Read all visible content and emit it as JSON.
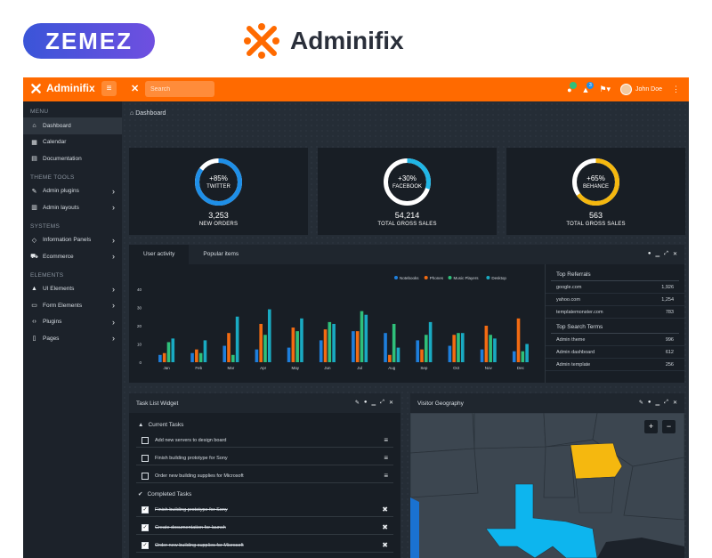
{
  "branding": {
    "zemez": "ZEMEZ",
    "product": "Adminifix",
    "accent": "#ff6a00"
  },
  "topbar": {
    "logo": "Adminifix",
    "search_placeholder": "Search",
    "user": "John Doe",
    "badges": [
      "",
      "3"
    ]
  },
  "sidebar": {
    "sections": [
      {
        "title": "MENU",
        "items": [
          {
            "label": "Dashboard",
            "icon": "home-icon",
            "active": true,
            "chevron": false
          },
          {
            "label": "Calendar",
            "icon": "calendar-icon",
            "chevron": false
          },
          {
            "label": "Documentation",
            "icon": "book-icon",
            "chevron": false
          }
        ]
      },
      {
        "title": "THEME TOOLS",
        "items": [
          {
            "label": "Admin plugins",
            "icon": "pen-icon",
            "chevron": true
          },
          {
            "label": "Admin layouts",
            "icon": "columns-icon",
            "chevron": true
          }
        ]
      },
      {
        "title": "SYSTEMS",
        "items": [
          {
            "label": "Information Panels",
            "icon": "diamond-icon",
            "chevron": true
          },
          {
            "label": "Ecommerce",
            "icon": "cart-icon",
            "chevron": true
          }
        ]
      },
      {
        "title": "ELEMENTS",
        "items": [
          {
            "label": "UI Elements",
            "icon": "bell-icon",
            "chevron": true
          },
          {
            "label": "Form Elements",
            "icon": "form-icon",
            "chevron": true
          },
          {
            "label": "Plugins",
            "icon": "code-icon",
            "chevron": true
          },
          {
            "label": "Pages",
            "icon": "page-icon",
            "chevron": true
          }
        ]
      }
    ]
  },
  "breadcrumb": "Dashboard",
  "stats": [
    {
      "pct": "+85%",
      "name": "TWITTER",
      "fill": 0.85,
      "color": "#1e8fe8",
      "num": "3,253",
      "sub": "NEW ORDERS"
    },
    {
      "pct": "+30%",
      "name": "FACEBOOK",
      "fill": 0.3,
      "color": "#20b6e6",
      "num": "54,214",
      "sub": "TOTAL GROSS SALES"
    },
    {
      "pct": "+65%",
      "name": "BEHANCE",
      "fill": 0.65,
      "color": "#f5b80f",
      "num": "563",
      "sub": "TOTAL GROSS SALES"
    }
  ],
  "activity_panel": {
    "tabs": [
      "User activity",
      "Popular items"
    ],
    "referrals_title": "Top Referrals",
    "referrals": [
      {
        "site": "google.com",
        "value": "1,926"
      },
      {
        "site": "yahoo.com",
        "value": "1,254"
      },
      {
        "site": "templatemonster.com",
        "value": "783"
      }
    ],
    "search_title": "Top Search Terms",
    "search_terms": [
      {
        "term": "Admin theme",
        "value": "996"
      },
      {
        "term": "Admin dashboard",
        "value": "612"
      },
      {
        "term": "Admin template",
        "value": "256"
      }
    ]
  },
  "chart_data": {
    "type": "bar",
    "categories": [
      "Jan",
      "Feb",
      "Mar",
      "Apr",
      "May",
      "Jun",
      "Jul",
      "Aug",
      "Sep",
      "Oct",
      "Nov",
      "Dec"
    ],
    "yticks": [
      "0",
      "10",
      "20",
      "30",
      "40"
    ],
    "ylim": [
      0,
      40
    ],
    "series": [
      {
        "name": "Notebooks",
        "color": "#1e7fdc",
        "values": [
          4,
          5,
          9,
          7,
          8,
          12,
          17,
          16,
          12,
          9,
          7,
          6
        ]
      },
      {
        "name": "Phones",
        "color": "#f26b12",
        "values": [
          5,
          7,
          16,
          21,
          19,
          18,
          17,
          4,
          7,
          15,
          20,
          24
        ]
      },
      {
        "name": "Music Players",
        "color": "#2fc07a",
        "values": [
          11,
          5,
          4,
          15,
          17,
          22,
          28,
          21,
          15,
          16,
          15,
          6
        ]
      },
      {
        "name": "Desktop",
        "color": "#19aac2",
        "values": [
          13,
          12,
          25,
          29,
          24,
          21,
          26,
          8,
          22,
          16,
          13,
          10
        ]
      }
    ]
  },
  "tasks": {
    "title": "Task List Widget",
    "current_label": "Current Tasks",
    "current": [
      "Add new servers to design board",
      "Finish building prototype for Sony",
      "Order new building supplies for Microsoft"
    ],
    "completed_label": "Completed Tasks",
    "completed": [
      "Finish building prototype for Sony",
      "Create documentation for launch",
      "Order new building supplies for Microsoft"
    ]
  },
  "geo": {
    "title": "Visitor Geography",
    "zoom_in": "+",
    "zoom_out": "−"
  }
}
